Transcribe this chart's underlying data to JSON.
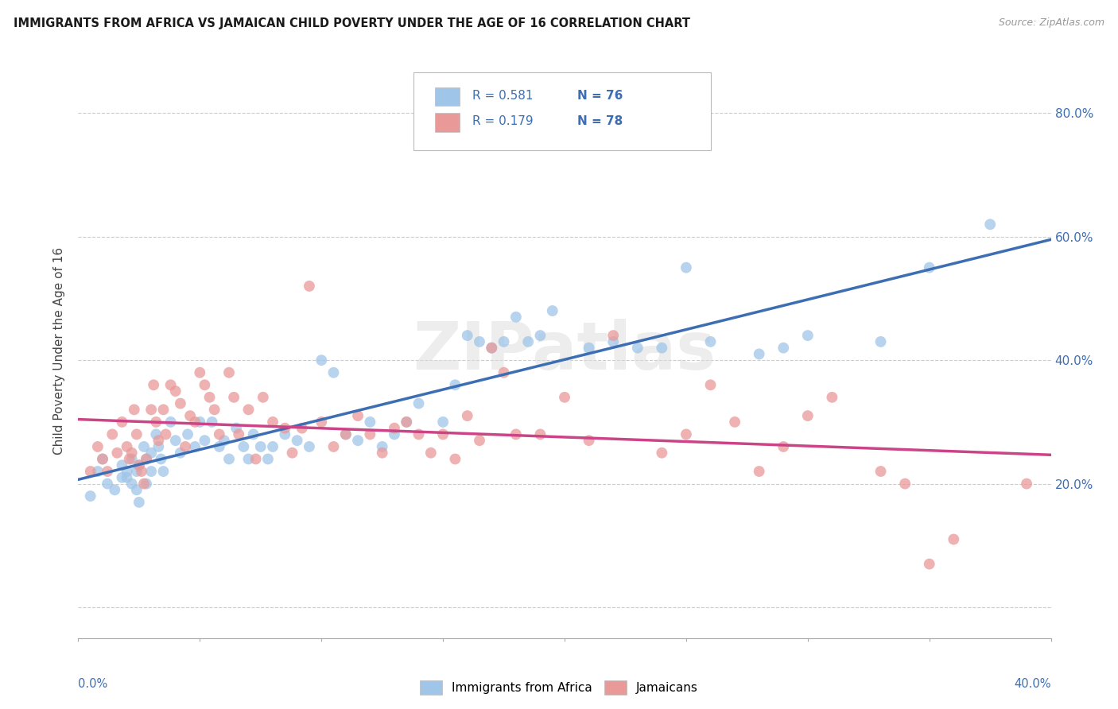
{
  "title": "IMMIGRANTS FROM AFRICA VS JAMAICAN CHILD POVERTY UNDER THE AGE OF 16 CORRELATION CHART",
  "source": "Source: ZipAtlas.com",
  "ylabel": "Child Poverty Under the Age of 16",
  "xlim": [
    0.0,
    0.4
  ],
  "ylim": [
    -0.05,
    0.88
  ],
  "yticks": [
    0.0,
    0.2,
    0.4,
    0.6,
    0.8
  ],
  "ytick_labels": [
    "",
    "20.0%",
    "40.0%",
    "60.0%",
    "80.0%"
  ],
  "r_africa": 0.581,
  "n_africa": 76,
  "r_jamaican": 0.179,
  "n_jamaican": 78,
  "color_africa": "#9fc5e8",
  "color_jamaican": "#ea9999",
  "trend_color_africa": "#3d6eb4",
  "trend_color_jamaican": "#cc4488",
  "legend_text_color": "#3d6eb4",
  "legend_label_africa": "Immigrants from Africa",
  "legend_label_jamaican": "Jamaicans",
  "background_color": "#ffffff",
  "grid_color": "#cccccc",
  "watermark": "ZIPatlas",
  "africa_x": [
    0.005,
    0.008,
    0.01,
    0.012,
    0.015,
    0.018,
    0.018,
    0.02,
    0.02,
    0.022,
    0.022,
    0.024,
    0.024,
    0.025,
    0.025,
    0.027,
    0.028,
    0.028,
    0.03,
    0.03,
    0.032,
    0.033,
    0.034,
    0.035,
    0.038,
    0.04,
    0.042,
    0.045,
    0.048,
    0.05,
    0.052,
    0.055,
    0.058,
    0.06,
    0.062,
    0.065,
    0.068,
    0.07,
    0.072,
    0.075,
    0.078,
    0.08,
    0.085,
    0.09,
    0.095,
    0.1,
    0.105,
    0.11,
    0.115,
    0.12,
    0.125,
    0.13,
    0.135,
    0.14,
    0.15,
    0.155,
    0.16,
    0.165,
    0.17,
    0.175,
    0.18,
    0.185,
    0.19,
    0.195,
    0.21,
    0.22,
    0.23,
    0.24,
    0.25,
    0.26,
    0.28,
    0.29,
    0.3,
    0.33,
    0.35,
    0.375
  ],
  "africa_y": [
    0.18,
    0.22,
    0.24,
    0.2,
    0.19,
    0.21,
    0.23,
    0.22,
    0.21,
    0.2,
    0.24,
    0.22,
    0.19,
    0.23,
    0.17,
    0.26,
    0.24,
    0.2,
    0.25,
    0.22,
    0.28,
    0.26,
    0.24,
    0.22,
    0.3,
    0.27,
    0.25,
    0.28,
    0.26,
    0.3,
    0.27,
    0.3,
    0.26,
    0.27,
    0.24,
    0.29,
    0.26,
    0.24,
    0.28,
    0.26,
    0.24,
    0.26,
    0.28,
    0.27,
    0.26,
    0.4,
    0.38,
    0.28,
    0.27,
    0.3,
    0.26,
    0.28,
    0.3,
    0.33,
    0.3,
    0.36,
    0.44,
    0.43,
    0.42,
    0.43,
    0.47,
    0.43,
    0.44,
    0.48,
    0.42,
    0.43,
    0.42,
    0.42,
    0.55,
    0.43,
    0.41,
    0.42,
    0.44,
    0.43,
    0.55,
    0.62
  ],
  "jamaican_x": [
    0.005,
    0.008,
    0.01,
    0.012,
    0.014,
    0.016,
    0.018,
    0.02,
    0.021,
    0.022,
    0.023,
    0.024,
    0.025,
    0.026,
    0.027,
    0.028,
    0.03,
    0.031,
    0.032,
    0.033,
    0.035,
    0.036,
    0.038,
    0.04,
    0.042,
    0.044,
    0.046,
    0.048,
    0.05,
    0.052,
    0.054,
    0.056,
    0.058,
    0.062,
    0.064,
    0.066,
    0.07,
    0.073,
    0.076,
    0.08,
    0.085,
    0.088,
    0.092,
    0.095,
    0.1,
    0.105,
    0.11,
    0.115,
    0.12,
    0.125,
    0.13,
    0.135,
    0.14,
    0.145,
    0.15,
    0.155,
    0.16,
    0.165,
    0.17,
    0.175,
    0.18,
    0.19,
    0.2,
    0.21,
    0.22,
    0.24,
    0.25,
    0.26,
    0.27,
    0.28,
    0.29,
    0.3,
    0.31,
    0.33,
    0.34,
    0.35,
    0.36,
    0.39
  ],
  "jamaican_y": [
    0.22,
    0.26,
    0.24,
    0.22,
    0.28,
    0.25,
    0.3,
    0.26,
    0.24,
    0.25,
    0.32,
    0.28,
    0.23,
    0.22,
    0.2,
    0.24,
    0.32,
    0.36,
    0.3,
    0.27,
    0.32,
    0.28,
    0.36,
    0.35,
    0.33,
    0.26,
    0.31,
    0.3,
    0.38,
    0.36,
    0.34,
    0.32,
    0.28,
    0.38,
    0.34,
    0.28,
    0.32,
    0.24,
    0.34,
    0.3,
    0.29,
    0.25,
    0.29,
    0.52,
    0.3,
    0.26,
    0.28,
    0.31,
    0.28,
    0.25,
    0.29,
    0.3,
    0.28,
    0.25,
    0.28,
    0.24,
    0.31,
    0.27,
    0.42,
    0.38,
    0.28,
    0.28,
    0.34,
    0.27,
    0.44,
    0.25,
    0.28,
    0.36,
    0.3,
    0.22,
    0.26,
    0.31,
    0.34,
    0.22,
    0.2,
    0.07,
    0.11,
    0.2
  ]
}
